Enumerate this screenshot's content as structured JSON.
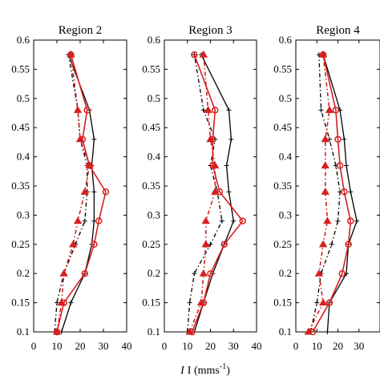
{
  "chart_data": {
    "type": "line",
    "xlabel": "I (mms",
    "xlabel_sup": "-1",
    "xlabel_close": ")",
    "ylim": [
      0.1,
      0.6
    ],
    "y_ticks": [
      0.1,
      0.15,
      0.2,
      0.25,
      0.3,
      0.35,
      0.4,
      0.45,
      0.5,
      0.55,
      0.6
    ],
    "y_tick_labels": [
      "0.1",
      "0.15",
      "0.2",
      "0.25",
      "0.3",
      "0.35",
      "0.4",
      "0.45",
      "0.5",
      "0.55",
      "0.6"
    ],
    "colors": {
      "black": "#000000",
      "red": "#d62020"
    },
    "panels": [
      {
        "title": "Region  2",
        "xlim": [
          0,
          40
        ],
        "x_tick_labels": [
          "0",
          "10",
          "20",
          "30",
          "40"
        ],
        "series": [
          {
            "color": "black",
            "style": "solid",
            "marker": "plus",
            "x": [
              12,
              16,
              22,
              25,
              26,
              26,
              25,
              26,
              24,
              15
            ],
            "y": [
              0.1,
              0.15,
              0.2,
              0.25,
              0.29,
              0.34,
              0.385,
              0.43,
              0.48,
              0.575
            ]
          },
          {
            "color": "black",
            "style": "dashdot",
            "marker": "plus",
            "x": [
              9,
              10,
              13,
              18,
              22,
              23,
              23,
              20,
              19,
              15
            ],
            "y": [
              0.1,
              0.15,
              0.2,
              0.25,
              0.29,
              0.34,
              0.385,
              0.43,
              0.48,
              0.575
            ]
          },
          {
            "color": "red",
            "style": "solid",
            "marker": "circle",
            "x": [
              10,
              13,
              22,
              26,
              28,
              31,
              24,
              21,
              23,
              16
            ],
            "y": [
              0.1,
              0.15,
              0.2,
              0.25,
              0.29,
              0.34,
              0.385,
              0.43,
              0.48,
              0.575
            ]
          },
          {
            "color": "red",
            "style": "dashdot",
            "marker": "triangle",
            "x": [
              10,
              12,
              13,
              17,
              19,
              22,
              24,
              20,
              19,
              16
            ],
            "y": [
              0.1,
              0.15,
              0.2,
              0.25,
              0.29,
              0.34,
              0.385,
              0.43,
              0.48,
              0.575
            ]
          }
        ]
      },
      {
        "title": "Region  3",
        "xlim": [
          0,
          40
        ],
        "x_tick_labels": [
          "0",
          "10",
          "20",
          "30",
          "40"
        ],
        "series": [
          {
            "color": "black",
            "style": "solid",
            "marker": "plus",
            "x": [
              13,
              17,
              21,
              26,
              30,
              28,
              27,
              29,
              28,
              16
            ],
            "y": [
              0.1,
              0.15,
              0.2,
              0.25,
              0.29,
              0.34,
              0.385,
              0.43,
              0.48,
              0.575
            ]
          },
          {
            "color": "black",
            "style": "dashdot",
            "marker": "plus",
            "x": [
              10,
              11,
              13,
              20,
              25,
              23,
              20,
              22,
              17,
              13
            ],
            "y": [
              0.1,
              0.15,
              0.2,
              0.25,
              0.29,
              0.34,
              0.385,
              0.43,
              0.48,
              0.575
            ]
          },
          {
            "color": "red",
            "style": "solid",
            "marker": "circle",
            "x": [
              12,
              17,
              20,
              26,
              34,
              24,
              21,
              21,
              22,
              13
            ],
            "y": [
              0.1,
              0.15,
              0.2,
              0.25,
              0.29,
              0.34,
              0.385,
              0.43,
              0.48,
              0.575
            ]
          },
          {
            "color": "red",
            "style": "dashdot",
            "marker": "triangle",
            "x": [
              11,
              16,
              17,
              18,
              18,
              22,
              22,
              20,
              19,
              17
            ],
            "y": [
              0.1,
              0.15,
              0.2,
              0.25,
              0.29,
              0.34,
              0.385,
              0.43,
              0.48,
              0.575
            ]
          }
        ]
      },
      {
        "title": "Region  4",
        "xlim": [
          0,
          40
        ],
        "x_tick_labels": [
          "0",
          "10",
          "20",
          "30"
        ],
        "series": [
          {
            "color": "black",
            "style": "solid",
            "marker": "plus",
            "x": [
              15,
              16,
              24,
              25,
              29,
              26,
              24,
              23,
              21,
              13
            ],
            "y": [
              0.1,
              0.15,
              0.2,
              0.25,
              0.29,
              0.34,
              0.385,
              0.43,
              0.48,
              0.575
            ]
          },
          {
            "color": "black",
            "style": "dashdot",
            "marker": "plus",
            "x": [
              7,
              10,
              12,
              17,
              20,
              21,
              19,
              16,
              12,
              11
            ],
            "y": [
              0.1,
              0.15,
              0.2,
              0.25,
              0.29,
              0.34,
              0.385,
              0.43,
              0.48,
              0.575
            ]
          },
          {
            "color": "red",
            "style": "solid",
            "marker": "circle",
            "x": [
              8,
              16,
              22,
              25,
              26,
              23,
              21,
              20,
              19,
              13
            ],
            "y": [
              0.1,
              0.15,
              0.2,
              0.25,
              0.29,
              0.34,
              0.385,
              0.43,
              0.48,
              0.575
            ]
          },
          {
            "color": "red",
            "style": "dashdot",
            "marker": "triangle",
            "x": [
              6,
              13,
              11,
              13,
              15,
              14,
              14,
              14,
              16,
              13
            ],
            "y": [
              0.1,
              0.15,
              0.2,
              0.25,
              0.29,
              0.34,
              0.385,
              0.43,
              0.48,
              0.575
            ]
          }
        ]
      }
    ]
  }
}
